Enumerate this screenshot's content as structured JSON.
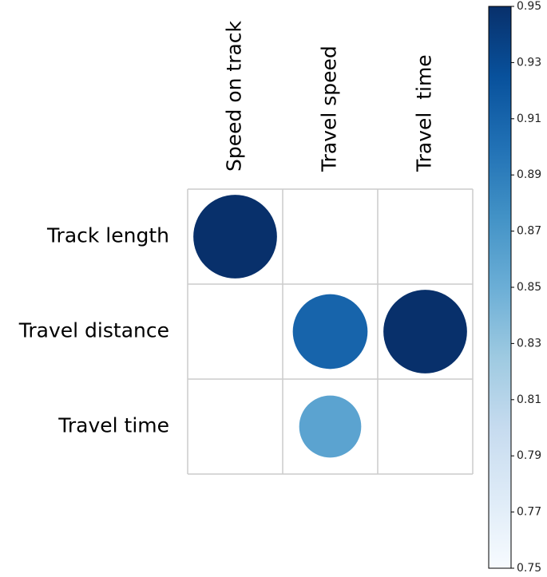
{
  "chart_data": {
    "type": "corrplot",
    "columns": [
      "Speed on track",
      "Travel speed",
      "Travel  time"
    ],
    "rows": [
      "Track length",
      "Travel distance",
      "Travel time"
    ],
    "values": [
      [
        0.95,
        null,
        null
      ],
      [
        null,
        0.91,
        0.95
      ],
      [
        null,
        0.86,
        null
      ]
    ],
    "clim": [
      0.75,
      0.95
    ],
    "cticks": [
      0.75,
      0.77,
      0.79,
      0.81,
      0.83,
      0.85,
      0.87,
      0.89,
      0.91,
      0.93,
      0.95
    ],
    "colormap": [
      "#f7fbff",
      "#deebf7",
      "#c6dbef",
      "#9ecae1",
      "#6baed6",
      "#4292c6",
      "#2171b5",
      "#08519c",
      "#08306b"
    ],
    "grid": true
  }
}
